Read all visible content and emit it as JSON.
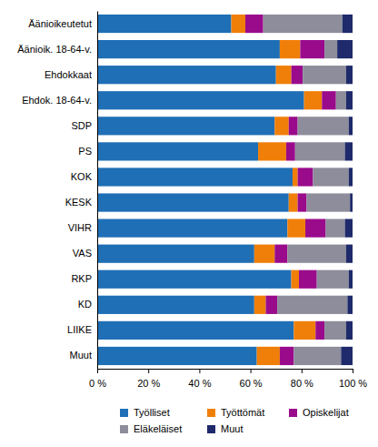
{
  "chart_data": {
    "type": "bar",
    "orientation": "horizontal",
    "stacked": true,
    "grid": false,
    "legend": "bottom",
    "categories": [
      "Äänioikeutetut",
      "Äänioik. 18-64-v.",
      "Ehdokkaat",
      "Ehdok. 18-64-v.",
      "SDP",
      "PS",
      "KOK",
      "KESK",
      "VIHR",
      "VAS",
      "RKP",
      "KD",
      "LIIKE",
      "Muut"
    ],
    "series": [
      {
        "name": "Työlliset",
        "color": "#1f6fb6",
        "values": [
          52.5,
          71.5,
          70,
          81,
          69.5,
          63,
          76.5,
          75,
          74.5,
          61.5,
          76,
          61.5,
          77,
          62.5
        ]
      },
      {
        "name": "Työttömät",
        "color": "#f07f09",
        "values": [
          5.5,
          8,
          6,
          7,
          5.5,
          11,
          2,
          3.5,
          7,
          8,
          3,
          4.5,
          8.5,
          9
        ]
      },
      {
        "name": "Opiskelijat",
        "color": "#9a0b8c",
        "values": [
          7,
          9.5,
          4.5,
          5.5,
          3.5,
          3.5,
          6,
          3.5,
          8,
          5,
          7,
          4.5,
          3.5,
          5.5
        ]
      },
      {
        "name": "Eläkeläiset",
        "color": "#8d8d9b",
        "values": [
          31,
          5,
          17,
          4,
          20,
          19.5,
          14,
          17,
          7.5,
          23,
          12.5,
          27.5,
          8.5,
          18.5
        ]
      },
      {
        "name": "Muut",
        "color": "#1e2a6b",
        "values": [
          4,
          6,
          2.5,
          2.5,
          1.5,
          3,
          1.5,
          1,
          3,
          2.5,
          1.5,
          2,
          2.5,
          4.5
        ]
      }
    ],
    "xlim": [
      0,
      100
    ],
    "xticks": [
      {
        "value": 0,
        "label": "0 %"
      },
      {
        "value": 20,
        "label": "20 %"
      },
      {
        "value": 40,
        "label": "40 %"
      },
      {
        "value": 60,
        "label": "60 %"
      },
      {
        "value": 80,
        "label": "80 %"
      },
      {
        "value": 100,
        "label": "100 %"
      }
    ]
  }
}
